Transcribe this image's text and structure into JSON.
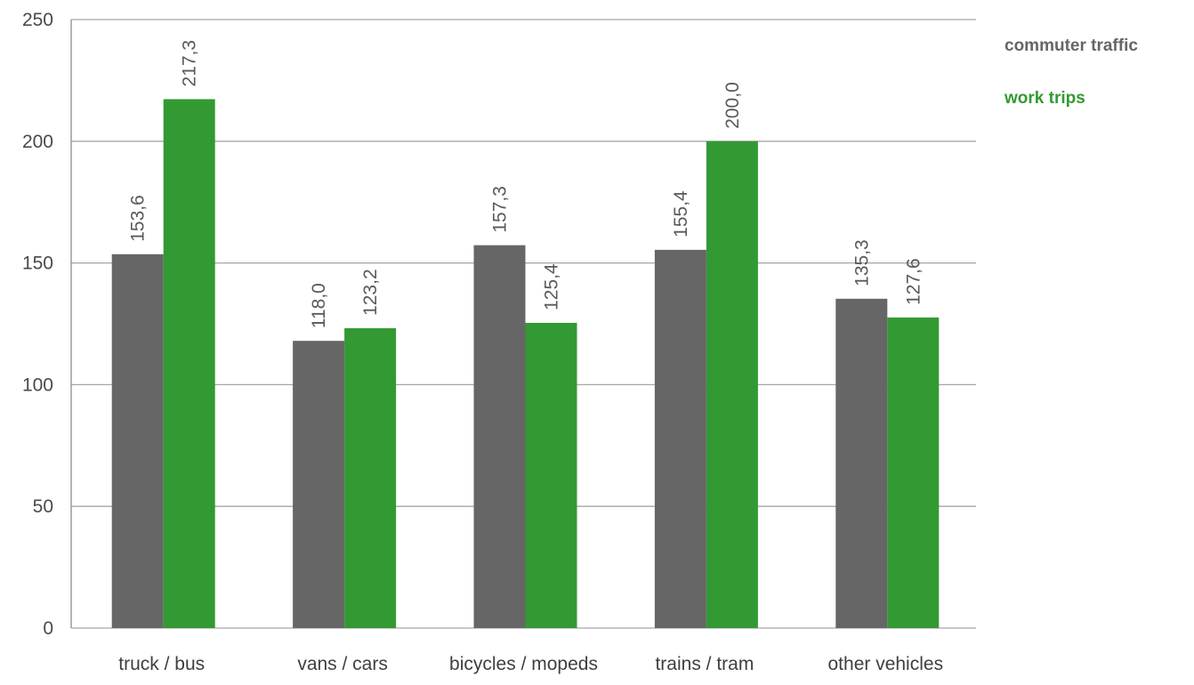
{
  "chart_data": {
    "type": "bar",
    "title": "",
    "xlabel": "",
    "ylabel": "",
    "categories": [
      "truck / bus",
      "vans / cars",
      "bicycles / mopeds",
      "trains / tram",
      "other vehicles"
    ],
    "series": [
      {
        "name": "commuter traffic",
        "color": "#666666",
        "values": [
          153.6,
          118.0,
          157.3,
          155.4,
          135.3
        ],
        "labels": [
          "153,6",
          "118,0",
          "157,3",
          "155,4",
          "135,3"
        ]
      },
      {
        "name": "work trips",
        "color": "#339933",
        "values": [
          217.3,
          123.2,
          125.4,
          200.0,
          127.6
        ],
        "labels": [
          "217,3",
          "123,2",
          "125,4",
          "200,0",
          "127,6"
        ]
      }
    ],
    "ylim": [
      0,
      250
    ],
    "yticks": [
      0,
      50,
      100,
      150,
      200,
      250
    ],
    "grid": true,
    "legend_position": "right",
    "data_label_orientation": "vertical"
  }
}
